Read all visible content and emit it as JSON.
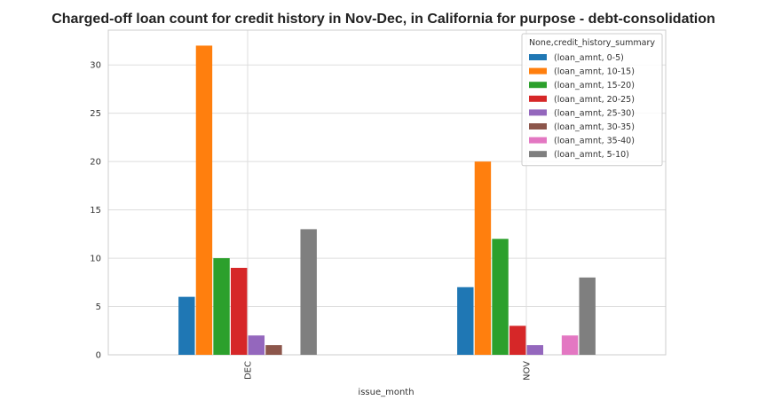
{
  "chart_data": {
    "type": "bar",
    "title": "Charged-off loan count for credit history in Nov-Dec, in California for purpose - debt-consolidation",
    "xlabel": "issue_month",
    "ylabel": "",
    "categories": [
      "DEC",
      "NOV"
    ],
    "ylim": [
      0,
      33.6
    ],
    "yticks": [
      0,
      5,
      10,
      15,
      20,
      25,
      30
    ],
    "grid": true,
    "legend": {
      "title": "None,credit_history_summary",
      "placement": "top-right"
    },
    "series": [
      {
        "name": "(loan_amnt, 0-5)",
        "color": "#1f77b4",
        "values": [
          6,
          7
        ]
      },
      {
        "name": "(loan_amnt, 10-15)",
        "color": "#ff7f0e",
        "values": [
          32,
          20
        ]
      },
      {
        "name": "(loan_amnt, 15-20)",
        "color": "#2ca02c",
        "values": [
          10,
          12
        ]
      },
      {
        "name": "(loan_amnt, 20-25)",
        "color": "#d62728",
        "values": [
          9,
          3
        ]
      },
      {
        "name": "(loan_amnt, 25-30)",
        "color": "#9467bd",
        "values": [
          2,
          1
        ]
      },
      {
        "name": "(loan_amnt, 30-35)",
        "color": "#8c564b",
        "values": [
          1,
          0
        ]
      },
      {
        "name": "(loan_amnt, 35-40)",
        "color": "#e377c2",
        "values": [
          0,
          2
        ]
      },
      {
        "name": "(loan_amnt, 5-10)",
        "color": "#7f7f7f",
        "values": [
          13,
          8
        ]
      }
    ]
  }
}
